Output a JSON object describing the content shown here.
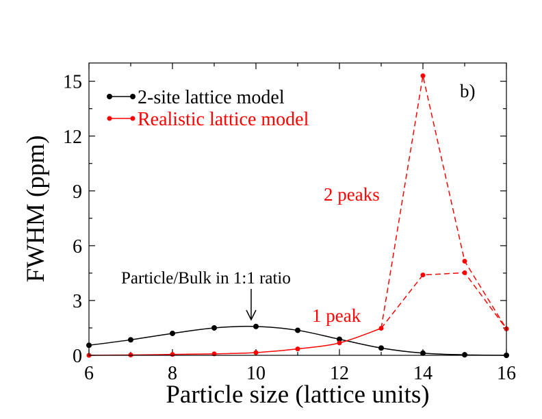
{
  "chart_data": {
    "type": "line",
    "panel_label": "b)",
    "xlabel": "Particle size (lattice units)",
    "ylabel": "FWHM (ppm)",
    "xlim": [
      6,
      16
    ],
    "ylim": [
      0,
      16
    ],
    "xticks": [
      6,
      8,
      10,
      12,
      14,
      16
    ],
    "yticks": [
      0,
      3,
      6,
      9,
      12,
      15
    ],
    "series": [
      {
        "name": "2-site lattice model",
        "color": "#000000",
        "x": [
          6,
          7,
          8,
          9,
          10,
          11,
          12,
          13,
          14,
          15,
          16
        ],
        "values": [
          0.55,
          0.85,
          1.2,
          1.5,
          1.58,
          1.37,
          0.88,
          0.4,
          0.12,
          0.03,
          0.0
        ]
      },
      {
        "name": "Realistic lattice model",
        "color": "#ff0000",
        "x": [
          6,
          7,
          8,
          9,
          10,
          11,
          12,
          13
        ],
        "values": [
          0.0,
          0.02,
          0.05,
          0.08,
          0.15,
          0.35,
          0.68,
          1.48
        ]
      }
    ],
    "branches": [
      {
        "name": "2 peaks",
        "color": "#ff0000",
        "x": [
          13,
          14,
          15,
          16
        ],
        "values": [
          1.48,
          15.3,
          5.15,
          1.45
        ]
      },
      {
        "name": "1 peak",
        "color": "#ff0000",
        "x": [
          13,
          14,
          15,
          16
        ],
        "values": [
          1.48,
          4.4,
          4.52,
          1.45
        ]
      }
    ],
    "annotations": {
      "two_peaks": "2 peaks",
      "one_peak": "1 peak",
      "ratio_note": "Particle/Bulk in 1:1 ratio"
    },
    "legend_position": "top-left"
  }
}
